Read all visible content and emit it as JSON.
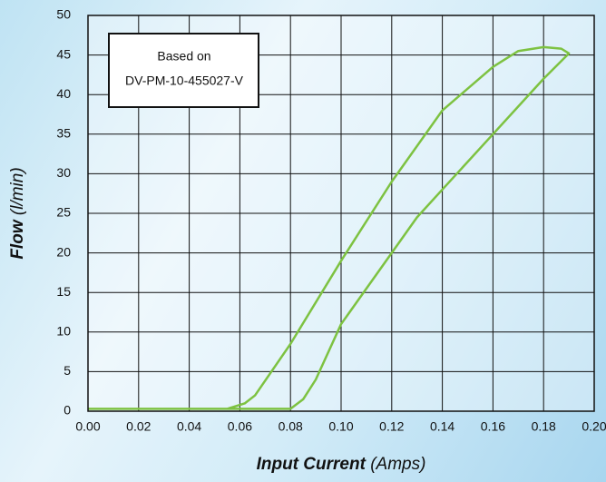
{
  "chart_data": {
    "type": "line",
    "xlabel": {
      "main": "Input Current",
      "unit": "(Amps)"
    },
    "ylabel": {
      "main": "Flow",
      "unit": "(l/min)"
    },
    "annotation": [
      "Based on",
      "DV-PM-10-455027-V"
    ],
    "xlim": [
      0,
      0.2
    ],
    "xticks": [
      {
        "value": 0,
        "label": "0.00"
      },
      0.02,
      0.04,
      0.06,
      0.08,
      {
        "value": 0.1,
        "label": "0.10"
      },
      0.12,
      0.14,
      0.16,
      0.18,
      {
        "value": 0.2,
        "label": "0.20"
      }
    ],
    "ylim": [
      0,
      50
    ],
    "yticks": [
      0,
      5,
      10,
      15,
      20,
      25,
      30,
      35,
      40,
      45,
      50
    ],
    "grid": true,
    "series": [
      {
        "color": "#7dc241",
        "x": [
          0,
          0.055,
          0.062,
          0.066,
          0.08,
          0.1,
          0.12,
          0.14,
          0.16,
          0.17,
          0.18,
          0.187,
          0.19,
          0.18,
          0.16,
          0.14,
          0.13,
          0.12,
          0.1,
          0.09,
          0.085,
          0.08,
          0.06,
          0
        ],
        "values": [
          0.3,
          0.3,
          1,
          2,
          8.5,
          19,
          29,
          38,
          43.5,
          45.5,
          46,
          45.8,
          45.2,
          42,
          35,
          28,
          24.5,
          20,
          11,
          4,
          1.5,
          0.3,
          0.3,
          0.3
        ]
      }
    ]
  }
}
